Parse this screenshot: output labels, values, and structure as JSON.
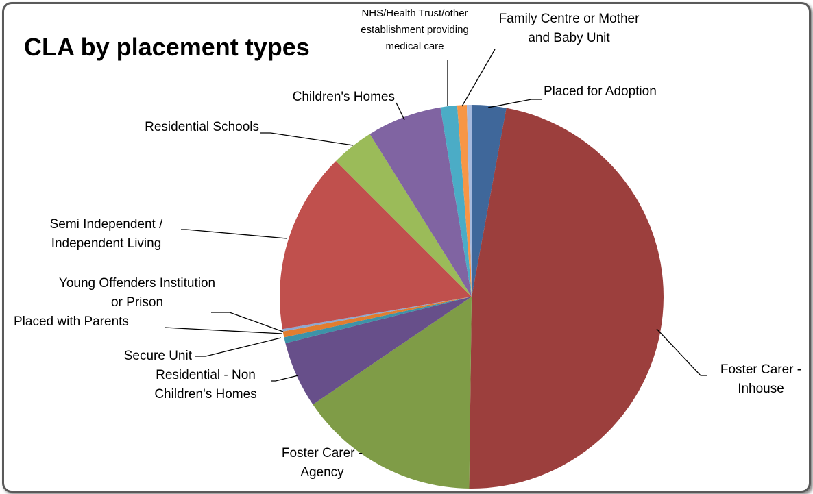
{
  "chart_data": {
    "type": "pie",
    "title": "CLA by placement types",
    "categories": [
      "Placed for Adoption",
      "Foster Carer - Inhouse",
      "Foster Carer - Agency",
      "Residential - Non Children's Homes",
      "Secure Unit",
      "Placed with Parents",
      "Young Offenders Institution or Prison",
      "Semi Independent / Independent Living",
      "Residential Schools",
      "Children's Homes",
      "NHS/Health Trust/other establishment providing medical care",
      "Family Centre or Mother and Baby Unit",
      null
    ],
    "values": [
      2.9,
      47.3,
      15.3,
      5.6,
      0.5,
      0.5,
      0.2,
      15.2,
      3.6,
      6.3,
      1.4,
      0.8,
      0.4
    ],
    "colors": [
      "#3f679a",
      "#9c3f3d",
      "#7f9c47",
      "#674f8a",
      "#3d93a8",
      "#e17d2f",
      "#8ea8d0",
      "#c0504d",
      "#9bbb59",
      "#8064a2",
      "#4bacc6",
      "#f79646",
      "#a6b9dd"
    ],
    "start_angle": 0,
    "direction": "clockwise"
  }
}
